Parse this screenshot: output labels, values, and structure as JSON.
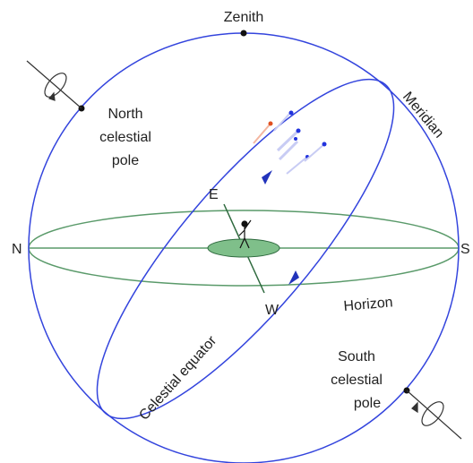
{
  "labels": {
    "zenith": "Zenith",
    "north_pole": [
      "North",
      "celestial",
      "pole"
    ],
    "meridian": "Meridian",
    "east": "E",
    "west": "W",
    "north": "N",
    "south": "S",
    "horizon": "Horizon",
    "equator": "Celestial equator",
    "south_pole": [
      "South",
      "celestial",
      "pole"
    ]
  }
}
